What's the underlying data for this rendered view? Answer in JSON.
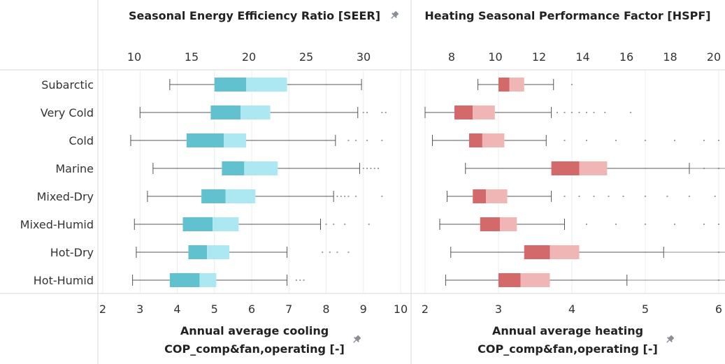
{
  "chart_data": {
    "type": "boxplot",
    "categories": [
      "Subarctic",
      "Very Cold",
      "Cold",
      "Marine",
      "Mixed-Dry",
      "Mixed-Humid",
      "Hot-Dry",
      "Hot-Humid"
    ],
    "panels": [
      {
        "title": "Seasonal Energy Efficiency Ratio [SEER]",
        "xlabel_line1": "Annual average cooling",
        "xlabel_line2": "COP_comp&fan,operating [-]",
        "top_axis": {
          "name": "SEER",
          "ticks": [
            10,
            15,
            20,
            25,
            30
          ]
        },
        "bottom_axis": {
          "name": "COP",
          "ticks": [
            2,
            3,
            4,
            5,
            6,
            7,
            8,
            9,
            10
          ],
          "range": [
            2,
            10.1
          ]
        },
        "low_color": "#62c1cf",
        "high_color": "#ace8f2",
        "series": [
          {
            "category": "Subarctic",
            "whisker_low": 3.8,
            "q1": 5.0,
            "median": 5.85,
            "q3": 6.95,
            "whisker_high": 8.95,
            "outliers": []
          },
          {
            "category": "Very Cold",
            "whisker_low": 3.0,
            "q1": 4.9,
            "median": 5.7,
            "q3": 6.5,
            "whisker_high": 8.85,
            "outliers": [
              9.0,
              9.1,
              9.5,
              9.6
            ]
          },
          {
            "category": "Cold",
            "whisker_low": 2.75,
            "q1": 4.25,
            "median": 5.25,
            "q3": 5.85,
            "whisker_high": 8.25,
            "outliers": [
              8.6,
              8.8,
              9.1,
              9.5
            ]
          },
          {
            "category": "Marine",
            "whisker_low": 3.35,
            "q1": 5.2,
            "median": 5.8,
            "q3": 6.7,
            "whisker_high": 8.9,
            "outliers": [
              9.0,
              9.1,
              9.2,
              9.3,
              9.4
            ]
          },
          {
            "category": "Mixed-Dry",
            "whisker_low": 3.2,
            "q1": 4.65,
            "median": 5.3,
            "q3": 6.1,
            "whisker_high": 8.2,
            "outliers": [
              8.3,
              8.4,
              8.5,
              8.6,
              8.8,
              9.5
            ]
          },
          {
            "category": "Mixed-Humid",
            "whisker_low": 2.85,
            "q1": 4.15,
            "median": 4.95,
            "q3": 5.65,
            "whisker_high": 7.85,
            "outliers": [
              8.0,
              8.2,
              8.5,
              9.15
            ]
          },
          {
            "category": "Hot-Dry",
            "whisker_low": 2.9,
            "q1": 4.3,
            "median": 4.8,
            "q3": 5.4,
            "whisker_high": 6.95,
            "outliers": [
              7.9,
              8.1,
              8.3,
              8.6
            ]
          },
          {
            "category": "Hot-Humid",
            "whisker_low": 2.8,
            "q1": 3.8,
            "median": 4.6,
            "q3": 5.05,
            "whisker_high": 6.95,
            "outliers": [
              7.2,
              7.3,
              7.4
            ]
          }
        ]
      },
      {
        "title": "Heating Seasonal Performance Factor [HSPF]",
        "xlabel_line1": "Annual average heating",
        "xlabel_line2": "COP_comp&fan,operating [-]",
        "top_axis": {
          "name": "HSPF",
          "ticks": [
            8,
            10,
            12,
            14,
            16,
            18,
            20
          ]
        },
        "bottom_axis": {
          "name": "COP",
          "ticks": [
            2,
            3,
            4,
            5,
            6
          ],
          "range": [
            1.92,
            6.0
          ]
        },
        "low_color": "#d4696b",
        "high_color": "#f0b6b6",
        "series": [
          {
            "category": "Subarctic",
            "whisker_low": 2.72,
            "q1": 3.0,
            "median": 3.15,
            "q3": 3.35,
            "whisker_high": 3.75,
            "outliers": [
              4.0
            ]
          },
          {
            "category": "Very Cold",
            "whisker_low": 2.0,
            "q1": 2.4,
            "median": 2.65,
            "q3": 2.95,
            "whisker_high": 3.72,
            "outliers": [
              3.8,
              3.9,
              4.0,
              4.1,
              4.2,
              4.3,
              4.45,
              4.8
            ]
          },
          {
            "category": "Cold",
            "whisker_low": 2.1,
            "q1": 2.6,
            "median": 2.78,
            "q3": 3.08,
            "whisker_high": 3.65,
            "outliers": [
              3.9,
              4.2,
              4.6,
              5.0,
              5.4,
              5.8,
              6.0
            ]
          },
          {
            "category": "Marine",
            "whisker_low": 2.55,
            "q1": 3.72,
            "median": 4.1,
            "q3": 4.48,
            "whisker_high": 5.6,
            "outliers": [
              5.8,
              6.0
            ]
          },
          {
            "category": "Mixed-Dry",
            "whisker_low": 2.3,
            "q1": 2.65,
            "median": 2.83,
            "q3": 3.12,
            "whisker_high": 3.72,
            "outliers": [
              3.9,
              4.1,
              4.3,
              4.5,
              4.7,
              5.0,
              5.3,
              5.6,
              5.95
            ]
          },
          {
            "category": "Mixed-Humid",
            "whisker_low": 2.2,
            "q1": 2.75,
            "median": 3.02,
            "q3": 3.25,
            "whisker_high": 3.9,
            "outliers": [
              4.2,
              4.6,
              5.0,
              5.4,
              5.8,
              6.0
            ]
          },
          {
            "category": "Hot-Dry",
            "whisker_low": 2.35,
            "q1": 3.35,
            "median": 3.7,
            "q3": 4.1,
            "whisker_high": 5.25,
            "outliers": [
              6.0
            ]
          },
          {
            "category": "Hot-Humid",
            "whisker_low": 2.28,
            "q1": 3.0,
            "median": 3.3,
            "q3": 3.7,
            "whisker_high": 4.75,
            "outliers": [
              6.0
            ]
          }
        ]
      }
    ]
  }
}
